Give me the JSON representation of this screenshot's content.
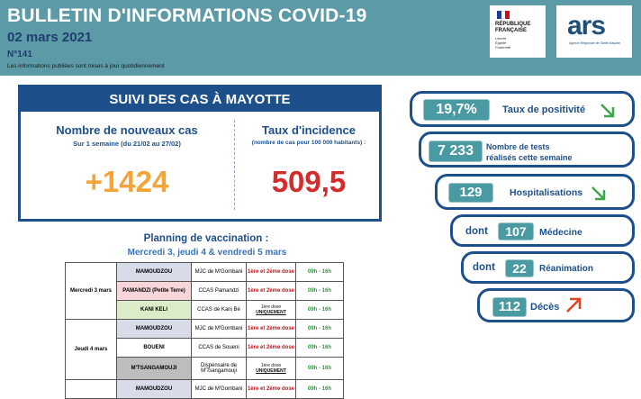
{
  "header": {
    "title": "BULLETIN D'INFORMATIONS COVID-19",
    "date": "02 mars 2021",
    "number": "N°141",
    "note": "Les informations publiées sont mises à jour quotidiennement",
    "logo_rf": {
      "line1": "RÉPUBLIQUE",
      "line2": "FRANÇAISE",
      "motto1": "Liberté",
      "motto2": "Égalité",
      "motto3": "Fraternité"
    },
    "logo_ars": {
      "text": "ars",
      "sub": "Agence Régionale de Santé Mayotte"
    }
  },
  "main": {
    "title": "SUIVI DES CAS À MAYOTTE",
    "new_cases_label": "Nombre de nouveaux cas",
    "new_cases_period": "Sur 1 semaine (du 21/02 au 27/02)",
    "new_cases_value": "+1424",
    "incidence_label": "Taux d'incidence",
    "incidence_sub": "(nombre de cas pour 100 000 habitants) :",
    "incidence_value": "509,5"
  },
  "planning": {
    "title": "Planning de vaccination :",
    "dates": "Mercredi 3, jeudi 4 & vendredi 5 mars",
    "rows": [
      {
        "day": "Mercredi 3 mars",
        "place": "MAMOUDZOU",
        "loc": "MJC de M'Gombani",
        "dose": "1ère et 2ème dose",
        "hours": "09h - 16h"
      },
      {
        "day": "",
        "place": "PAMANDZI (Petite Terre)",
        "loc": "CCAS Pamandzi",
        "dose": "1ère et 2ème dose",
        "hours": "09h - 16h"
      },
      {
        "day": "",
        "place": "KANI KELI",
        "loc": "CCAS de Kani Bé",
        "dose_prefix": "1ère dose ",
        "dose_emph": "UNIQUEMENT",
        "hours": "09h - 16h"
      },
      {
        "day": "Jeudi 4 mars",
        "place": "MAMOUDZOU",
        "loc": "MJC de M'Gombani",
        "dose": "1ère et 2ème dose",
        "hours": "09h - 16h"
      },
      {
        "day": "",
        "place": "BOUENI",
        "loc": "CCAS de Soueni",
        "dose": "1ère et 2ème dose",
        "hours": "09h - 16h"
      },
      {
        "day": "",
        "place": "M'TSANGAMOUJI",
        "loc": "Dispensaire de M'Tsangamouji",
        "dose_prefix": "1ère dose ",
        "dose_emph": "UNIQUEMENT",
        "hours": "09h - 16h"
      },
      {
        "day": "",
        "place": "MAMOUDZOU",
        "loc": "MJC de M'Gombani",
        "dose": "1ère et 2ème dose",
        "hours": "09h - 16h"
      }
    ]
  },
  "stats": {
    "positivite": {
      "value": "19,7%",
      "label": "Taux de positivité",
      "trend": "down",
      "color": "#3aa84a"
    },
    "tests": {
      "value": "7 233",
      "label1": "Nombre de tests",
      "label2": "réalisés cette semaine"
    },
    "hospit": {
      "value": "129",
      "label": "Hospitalisations",
      "trend": "down",
      "color": "#3aa84a"
    },
    "medecine": {
      "prefix": "dont",
      "value": "107",
      "label": "Médecine"
    },
    "reanimation": {
      "prefix": "dont",
      "value": "22",
      "label": "Réanimation"
    },
    "deces": {
      "value": "112",
      "label": "Décès",
      "trend": "up",
      "color": "#e0431b"
    }
  }
}
